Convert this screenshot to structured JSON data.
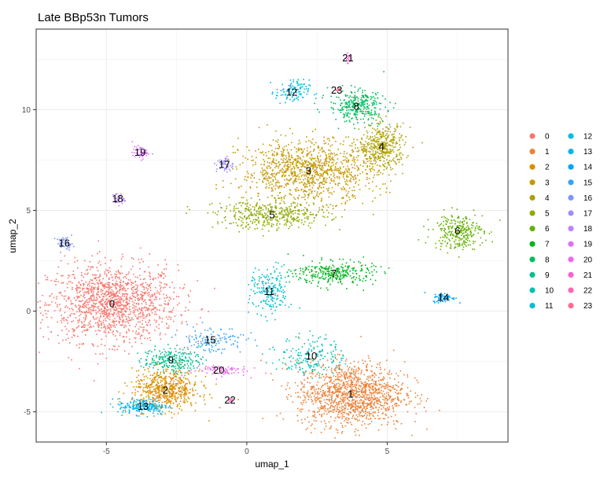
{
  "chart_data": {
    "type": "scatter",
    "title": "Late BBp53n Tumors",
    "xlabel": "umap_1",
    "ylabel": "umap_2",
    "xlim": [
      -7.5,
      9.3
    ],
    "ylim": [
      -6.5,
      14
    ],
    "xticks": [
      -5,
      0,
      5
    ],
    "yticks": [
      -5,
      0,
      5,
      10
    ],
    "xtick_labels": [
      "-5",
      "0",
      "5"
    ],
    "ytick_labels": [
      "-5",
      "0",
      "5",
      "10"
    ],
    "grid": true,
    "legend_position": "right",
    "clusters": [
      {
        "name": "0",
        "label": "0",
        "color": "#F8766D",
        "x": -4.8,
        "y": 0.4,
        "sx": 1.15,
        "sy": 0.95,
        "n": 1400
      },
      {
        "name": "1",
        "label": "1",
        "color": "#EC8239",
        "x": 3.7,
        "y": -4.1,
        "sx": 0.95,
        "sy": 0.8,
        "n": 1300
      },
      {
        "name": "2",
        "label": "2",
        "color": "#DB8E00",
        "x": -2.9,
        "y": -3.9,
        "sx": 0.6,
        "sy": 0.5,
        "n": 600
      },
      {
        "name": "3",
        "label": "3",
        "color": "#C79800",
        "x": 2.2,
        "y": 7.0,
        "sx": 1.2,
        "sy": 0.75,
        "n": 1100
      },
      {
        "name": "4",
        "label": "4",
        "color": "#AEA200",
        "x": 4.8,
        "y": 8.2,
        "sx": 0.4,
        "sy": 0.55,
        "n": 400
      },
      {
        "name": "5",
        "label": "5",
        "color": "#8FAA00",
        "x": 0.9,
        "y": 4.8,
        "sx": 1.0,
        "sy": 0.35,
        "n": 420
      },
      {
        "name": "6",
        "label": "6",
        "color": "#64B200",
        "x": 7.5,
        "y": 4.0,
        "sx": 0.45,
        "sy": 0.45,
        "n": 280
      },
      {
        "name": "7",
        "label": "7",
        "color": "#00B81B",
        "x": 3.1,
        "y": 1.9,
        "sx": 0.7,
        "sy": 0.3,
        "n": 300
      },
      {
        "name": "8",
        "label": "8",
        "color": "#00BD5C",
        "x": 3.9,
        "y": 10.2,
        "sx": 0.5,
        "sy": 0.4,
        "n": 300
      },
      {
        "name": "9",
        "label": "9",
        "color": "#00C08E",
        "x": -2.7,
        "y": -2.4,
        "sx": 0.5,
        "sy": 0.3,
        "n": 220
      },
      {
        "name": "10",
        "label": "10",
        "color": "#00C1B2",
        "x": 2.3,
        "y": -2.2,
        "sx": 0.6,
        "sy": 0.5,
        "n": 180
      },
      {
        "name": "11",
        "label": "11",
        "color": "#00BFD0",
        "x": 0.8,
        "y": 1.0,
        "sx": 0.35,
        "sy": 0.6,
        "n": 200
      },
      {
        "name": "12",
        "label": "12",
        "color": "#00BBE6",
        "x": 1.6,
        "y": 10.9,
        "sx": 0.3,
        "sy": 0.3,
        "n": 110
      },
      {
        "name": "13",
        "label": "13",
        "color": "#00B4F0",
        "x": -3.7,
        "y": -4.7,
        "sx": 0.45,
        "sy": 0.2,
        "n": 200
      },
      {
        "name": "14",
        "label": "14",
        "color": "#00A5FF",
        "x": 7.0,
        "y": 0.7,
        "sx": 0.2,
        "sy": 0.12,
        "n": 70
      },
      {
        "name": "15",
        "label": "15",
        "color": "#35A2FF",
        "x": -1.3,
        "y": -1.4,
        "sx": 0.6,
        "sy": 0.35,
        "n": 130
      },
      {
        "name": "16",
        "label": "16",
        "color": "#7C96FF",
        "x": -6.5,
        "y": 3.4,
        "sx": 0.15,
        "sy": 0.15,
        "n": 45
      },
      {
        "name": "17",
        "label": "17",
        "color": "#A48CFF",
        "x": -0.8,
        "y": 7.3,
        "sx": 0.15,
        "sy": 0.2,
        "n": 50
      },
      {
        "name": "18",
        "label": "18",
        "color": "#C37FFF",
        "x": -4.6,
        "y": 5.6,
        "sx": 0.1,
        "sy": 0.15,
        "n": 35
      },
      {
        "name": "19",
        "label": "19",
        "color": "#DC71FA",
        "x": -3.8,
        "y": 7.9,
        "sx": 0.15,
        "sy": 0.15,
        "n": 50
      },
      {
        "name": "20",
        "label": "20",
        "color": "#EF67EB",
        "x": -1.0,
        "y": -2.9,
        "sx": 0.5,
        "sy": 0.15,
        "n": 80
      },
      {
        "name": "21",
        "label": "21",
        "color": "#FB61D7",
        "x": 3.6,
        "y": 12.6,
        "sx": 0.05,
        "sy": 0.12,
        "n": 18
      },
      {
        "name": "22",
        "label": "22",
        "color": "#FF63B6",
        "x": -0.6,
        "y": -4.4,
        "sx": 0.08,
        "sy": 0.06,
        "n": 12
      },
      {
        "name": "23",
        "label": "23",
        "color": "#FF6C90",
        "x": 3.2,
        "y": 11.0,
        "sx": 0.06,
        "sy": 0.06,
        "n": 10
      }
    ]
  }
}
